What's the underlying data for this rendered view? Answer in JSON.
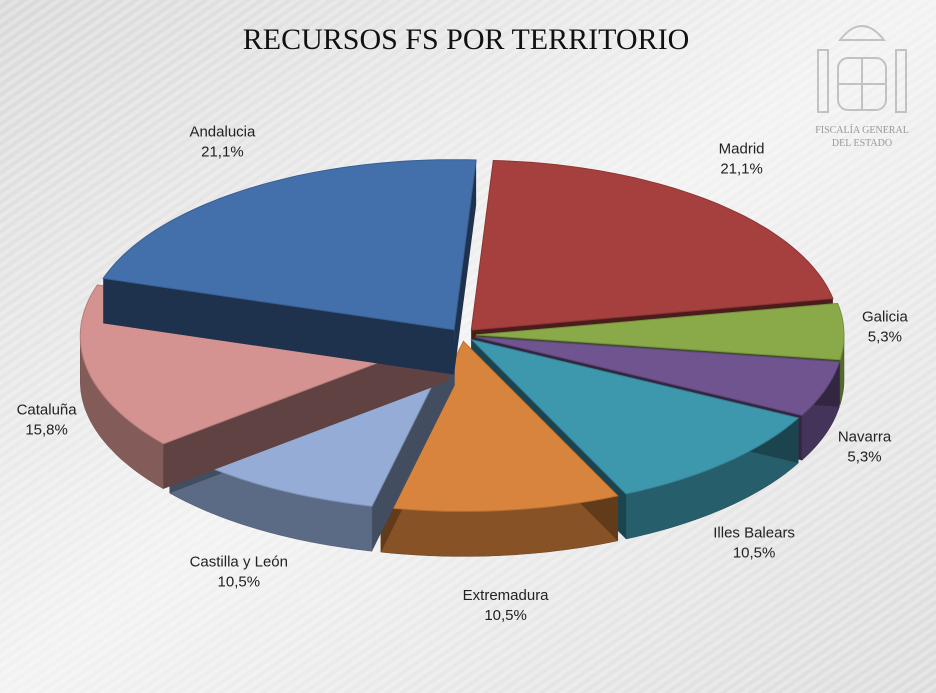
{
  "chart_data": {
    "type": "pie3d",
    "title": "RECURSOS FS POR TERRITORIO",
    "categories": [
      "Madrid",
      "Galicia",
      "Navarra",
      "Illes Balears",
      "Extremadura",
      "Castilla y León",
      "Cataluña",
      "Andalucia"
    ],
    "values": [
      21.1,
      5.3,
      5.3,
      10.5,
      10.5,
      10.5,
      15.8,
      21.1
    ],
    "value_labels": [
      "21,1%",
      "5,3%",
      "5,3%",
      "10,5%",
      "10,5%",
      "10,5%",
      "15,8%",
      "21,1%"
    ],
    "colors": [
      "#a5403e",
      "#8aaa4a",
      "#6f548f",
      "#3d97ad",
      "#d9843c",
      "#94acd6",
      "#d49390",
      "#4370ab"
    ]
  },
  "logo": {
    "lines": [
      "FISCALÍA GENERAL",
      "DEL ESTADO"
    ]
  }
}
